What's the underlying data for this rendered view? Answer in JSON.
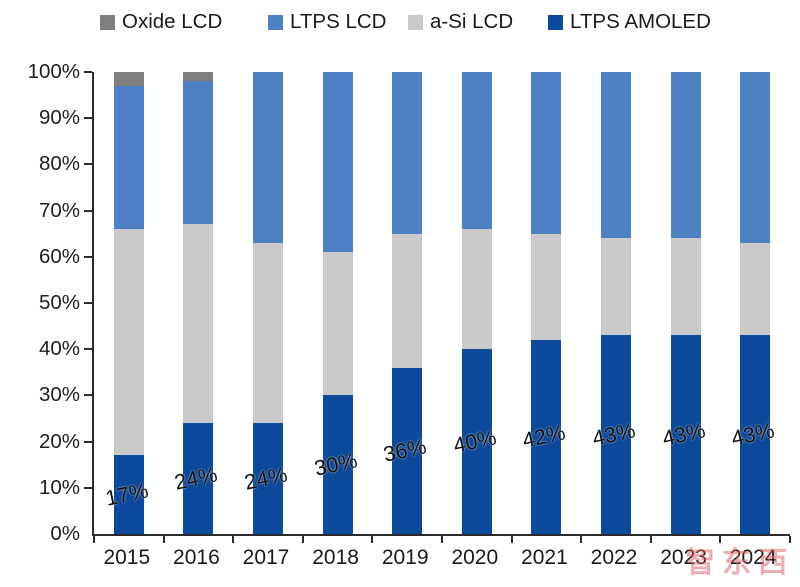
{
  "chart_data": {
    "type": "bar",
    "stacked": true,
    "percent_stacked": true,
    "title": "",
    "xlabel": "",
    "ylabel": "",
    "grid": false,
    "legend_position": "top",
    "categories": [
      "2015",
      "2016",
      "2017",
      "2018",
      "2019",
      "2020",
      "2021",
      "2022",
      "2023",
      "2024"
    ],
    "series": [
      {
        "name": "Oxide LCD",
        "color": "#7f7f7f",
        "textured": true,
        "values": [
          3,
          2,
          0,
          0,
          0,
          0,
          0,
          0,
          0,
          0
        ]
      },
      {
        "name": "LTPS LCD",
        "color": "#4e81c4",
        "textured": false,
        "values": [
          31,
          31,
          37,
          39,
          35,
          34,
          35,
          36,
          36,
          37
        ]
      },
      {
        "name": "a-Si LCD",
        "color": "#c9c9c9",
        "textured": true,
        "values": [
          49,
          43,
          39,
          31,
          29,
          26,
          23,
          21,
          21,
          20
        ]
      },
      {
        "name": "LTPS AMOLED",
        "color": "#0e4a9c",
        "textured": false,
        "values": [
          17,
          24,
          24,
          30,
          36,
          40,
          42,
          43,
          43,
          43
        ]
      }
    ],
    "data_labels": {
      "series": "LTPS AMOLED",
      "values": [
        "17%",
        "24%",
        "24%",
        "30%",
        "36%",
        "40%",
        "42%",
        "43%",
        "43%",
        "43%"
      ]
    },
    "y_axis": {
      "min": 0,
      "max": 100,
      "tick_labels": [
        "0%",
        "10%",
        "20%",
        "30%",
        "40%",
        "50%",
        "60%",
        "70%",
        "80%",
        "90%",
        "100%"
      ]
    }
  },
  "legend": {
    "items": [
      {
        "label": "Oxide LCD",
        "color": "#7f7f7f"
      },
      {
        "label": "LTPS LCD",
        "color": "#4e81c4"
      },
      {
        "label": "a-Si LCD",
        "color": "#c9c9c9"
      },
      {
        "label": "LTPS AMOLED",
        "color": "#0e4a9c"
      }
    ]
  },
  "watermark": {
    "text": "智东西",
    "color": "#de5c5c"
  }
}
